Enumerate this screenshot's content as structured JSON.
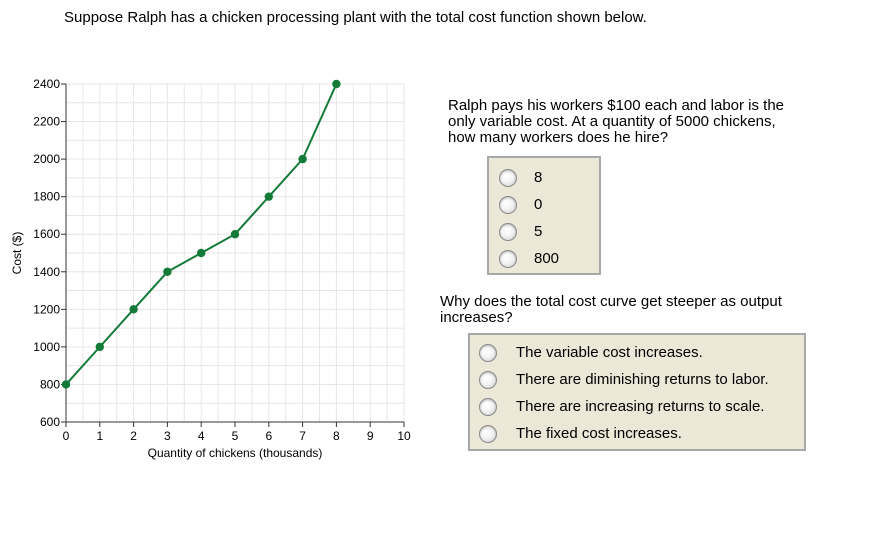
{
  "intro_text": "Suppose Ralph has a chicken processing plant with the total cost function shown below.",
  "chart_data": {
    "type": "line",
    "title": "",
    "xlabel": "Quantity of chickens (thousands)",
    "ylabel": "Cost ($)",
    "xlim": [
      0,
      10
    ],
    "ylim": [
      600,
      2400
    ],
    "x_ticks": [
      0,
      1,
      2,
      3,
      4,
      5,
      6,
      7,
      8,
      9,
      10
    ],
    "y_ticks": [
      600,
      800,
      1000,
      1200,
      1400,
      1600,
      1800,
      2000,
      2200,
      2400
    ],
    "grid": true,
    "series": [
      {
        "x": [
          0,
          1,
          2,
          3,
          4,
          5,
          6,
          7,
          8
        ],
        "y": [
          800,
          1000,
          1200,
          1400,
          1500,
          1600,
          1800,
          2000,
          2400
        ],
        "color": "#137a37"
      }
    ]
  },
  "question1": {
    "text": "Ralph pays his workers $100 each and labor is the only variable cost. At a quantity of 5000 chickens, how many workers does he hire?",
    "options": [
      "8",
      "0",
      "5",
      "800"
    ]
  },
  "question2": {
    "text": "Why does the total cost curve get steeper as output increases?",
    "options": [
      "The variable cost increases.",
      "There are diminishing returns to labor.",
      "There are increasing returns to scale.",
      "The fixed cost increases."
    ]
  }
}
